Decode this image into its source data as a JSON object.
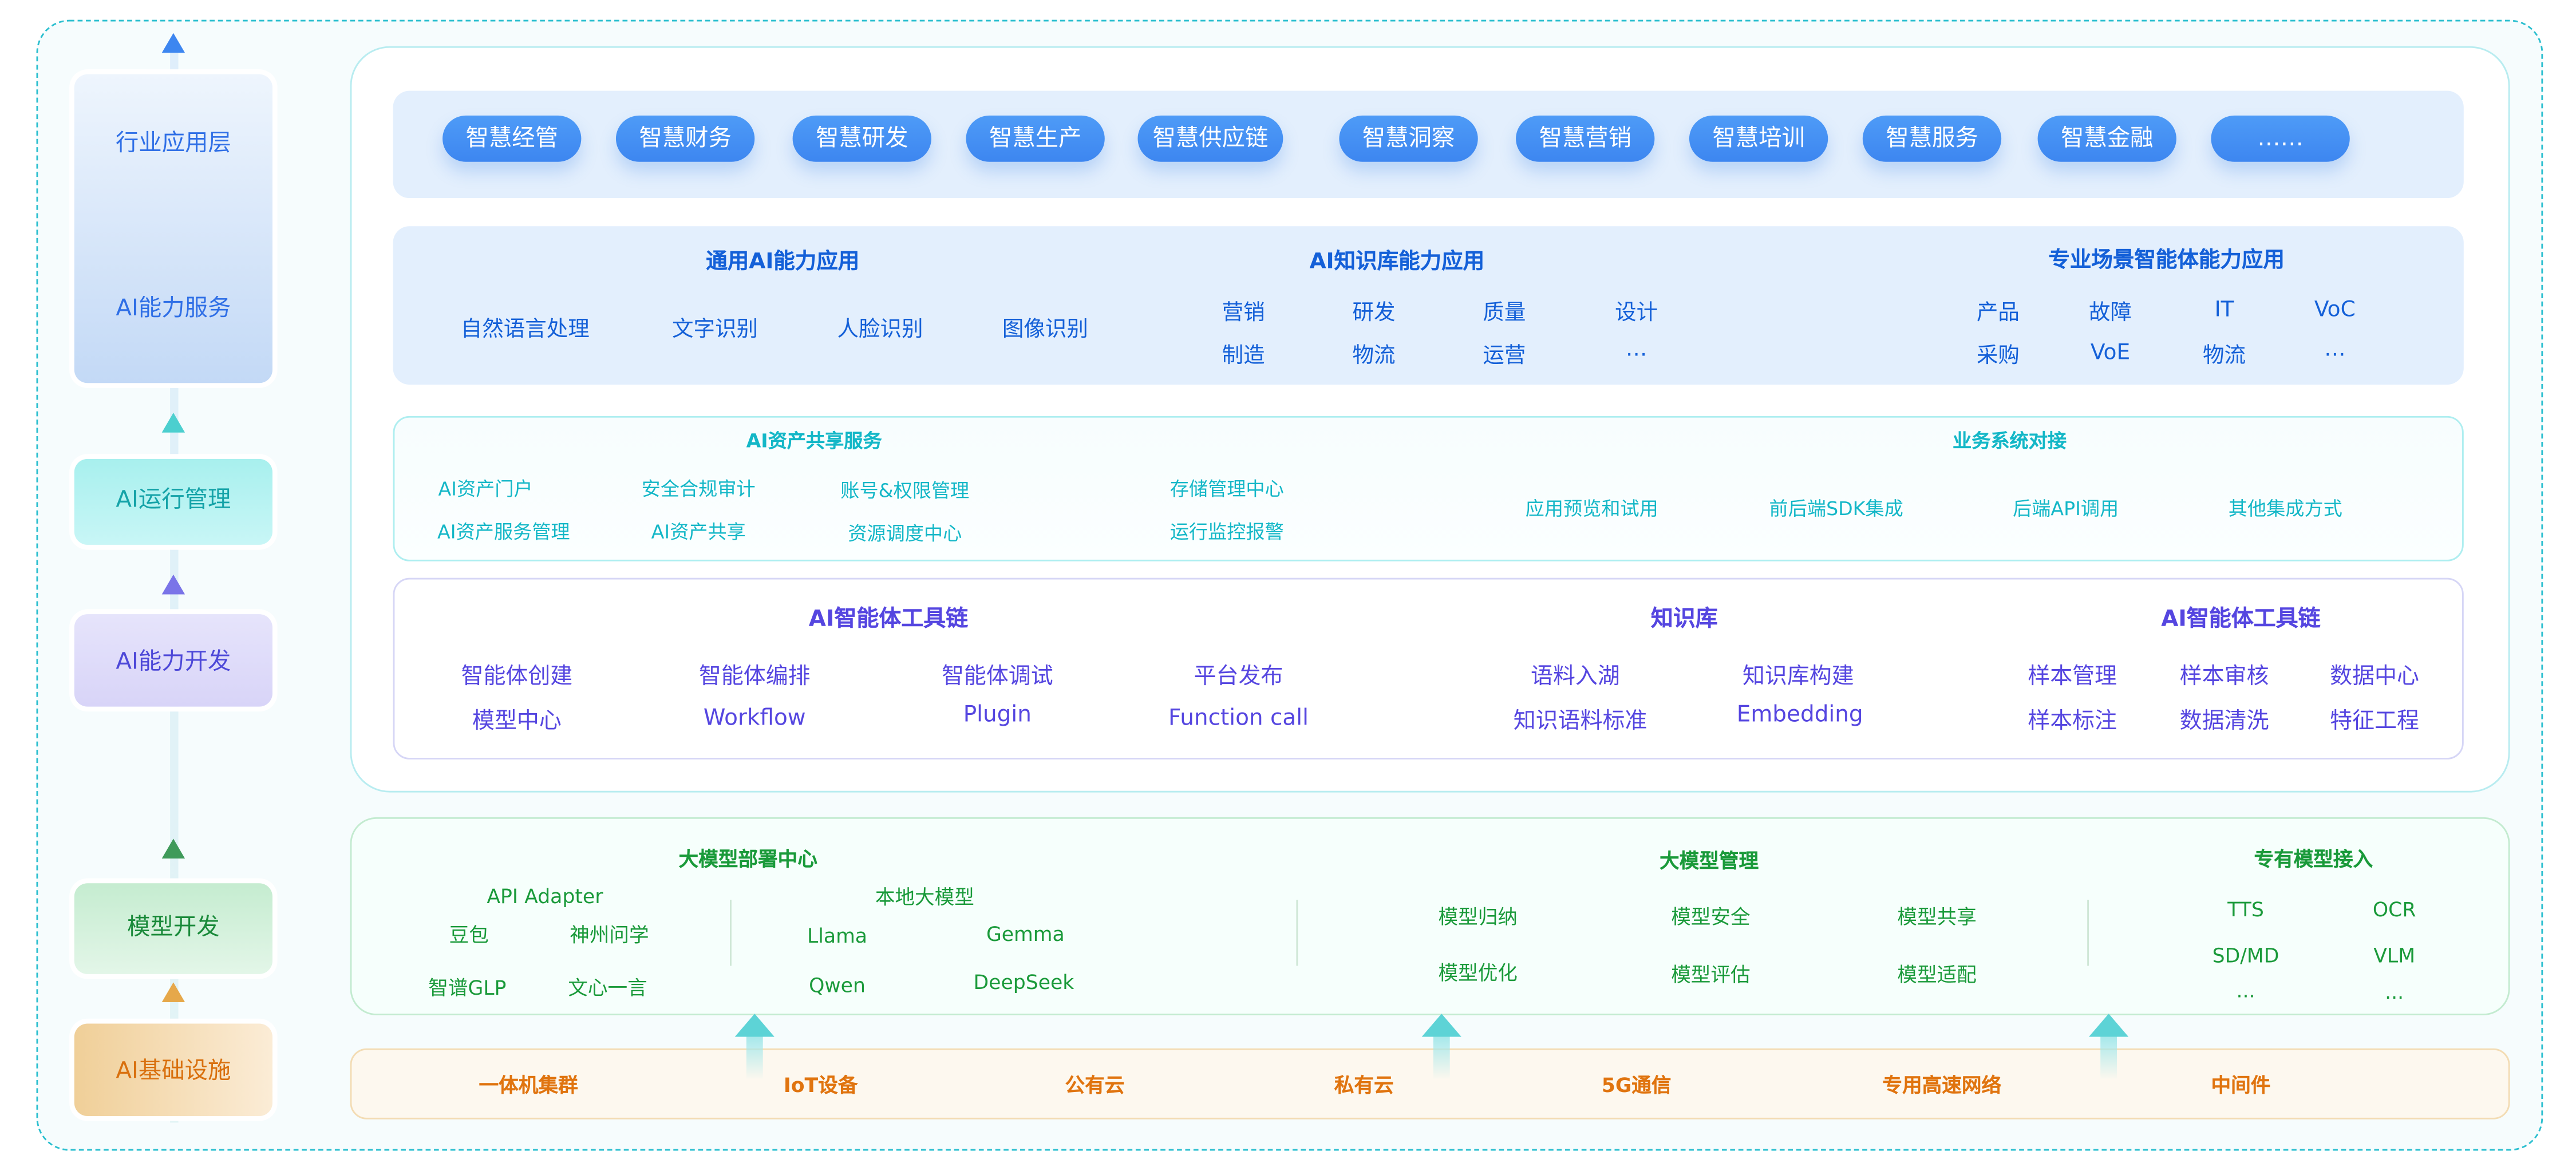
{
  "layers": {
    "industry": "行业应用层",
    "ai_service": "AI能力服务",
    "ai_ops": "AI运行管理",
    "ai_dev": "AI能力开发",
    "model_dev": "模型开发",
    "infra": "AI基础设施"
  },
  "apps": [
    "智慧经管",
    "智慧财务",
    "智慧研发",
    "智慧生产",
    "智慧供应链",
    "智慧洞察",
    "智慧营销",
    "智慧培训",
    "智慧服务",
    "智慧金融",
    "……"
  ],
  "ai_apps": {
    "general": {
      "title": "通用AI能力应用",
      "items": [
        "自然语言处理",
        "文字识别",
        "人脸识别",
        "图像识别"
      ]
    },
    "knowledge": {
      "title": "AI知识库能力应用",
      "items": [
        "营销",
        "研发",
        "质量",
        "设计",
        "制造",
        "物流",
        "运营",
        "…"
      ]
    },
    "scenario": {
      "title": "专业场景智能体能力应用",
      "items": [
        "产品",
        "故障",
        "IT",
        "VoC",
        "采购",
        "VoE",
        "物流",
        "…"
      ]
    }
  },
  "ops": {
    "asset": {
      "title": "AI资产共享服务",
      "items": [
        "AI资产门户",
        "安全合规审计",
        "账号&权限管理",
        "存储管理中心",
        "AI资产服务管理",
        "AI资产共享",
        "资源调度中心",
        "运行监控报警"
      ]
    },
    "integration": {
      "title": "业务系统对接",
      "items": [
        "应用预览和试用",
        "前后端SDK集成",
        "后端API调用",
        "其他集成方式"
      ]
    }
  },
  "dev": {
    "toolchain": {
      "title": "AI智能体工具链",
      "items": [
        "智能体创建",
        "智能体编排",
        "智能体调试",
        "平台发布",
        "模型中心",
        "Workflow",
        "Plugin",
        "Function call"
      ]
    },
    "kb": {
      "title": "知识库",
      "items": [
        "语料入湖",
        "知识库构建",
        "知识语料标准",
        "Embedding"
      ]
    },
    "toolchain2": {
      "title": "AI智能体工具链",
      "items": [
        "样本管理",
        "样本审核",
        "数据中心",
        "样本标注",
        "数据清洗",
        "特征工程"
      ]
    }
  },
  "model": {
    "deploy": {
      "title": "大模型部署中心",
      "items": [
        "API Adapter",
        "豆包",
        "神州问学",
        "智谱GLP",
        "文心一言",
        "本地大模型",
        "Llama",
        "Gemma",
        "Qwen",
        "DeepSeek"
      ]
    },
    "manage": {
      "title": "大模型管理",
      "items": [
        "模型归纳",
        "模型安全",
        "模型共享",
        "模型优化",
        "模型评估",
        "模型适配"
      ]
    },
    "proprietary": {
      "title": "专有模型接入",
      "items": [
        "TTS",
        "OCR",
        "SD/MD",
        "VLM",
        "...",
        "..."
      ]
    }
  },
  "infra_items": [
    "一体机集群",
    "IoT设备",
    "公有云",
    "私有云",
    "5G通信",
    "专用高速网络",
    "中间件"
  ],
  "colors": {
    "blue": "#1460d8",
    "teal": "#14b7c7",
    "purple": "#5546e0",
    "green": "#1a9a3a",
    "orange": "#e0740f",
    "border": "#2bbfcf"
  }
}
